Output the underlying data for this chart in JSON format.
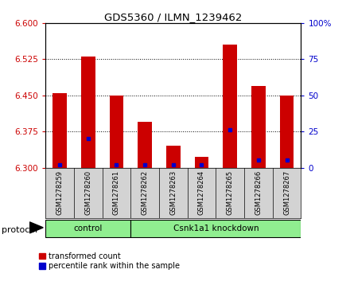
{
  "title": "GDS5360 / ILMN_1239462",
  "samples": [
    "GSM1278259",
    "GSM1278260",
    "GSM1278261",
    "GSM1278262",
    "GSM1278263",
    "GSM1278264",
    "GSM1278265",
    "GSM1278266",
    "GSM1278267"
  ],
  "transformed_count": [
    6.455,
    6.53,
    6.45,
    6.395,
    6.345,
    6.323,
    6.555,
    6.47,
    6.45
  ],
  "percentile_rank": [
    2,
    20,
    2,
    2,
    2,
    2,
    26,
    5,
    5
  ],
  "ymin": 6.3,
  "ymax": 6.6,
  "yticks": [
    6.3,
    6.375,
    6.45,
    6.525,
    6.6
  ],
  "right_yticks": [
    0,
    25,
    50,
    75,
    100
  ],
  "bar_color": "#cc0000",
  "dot_color": "#0000cc",
  "protocol_groups": [
    {
      "label": "control",
      "start": 0,
      "end": 3
    },
    {
      "label": "Csnk1a1 knockdown",
      "start": 3,
      "end": 9
    }
  ],
  "protocol_label": "protocol",
  "tick_label_color_left": "#cc0000",
  "tick_label_color_right": "#0000cc",
  "bar_width": 0.5,
  "cell_bg": "#d3d3d3",
  "proto_color": "#90ee90"
}
